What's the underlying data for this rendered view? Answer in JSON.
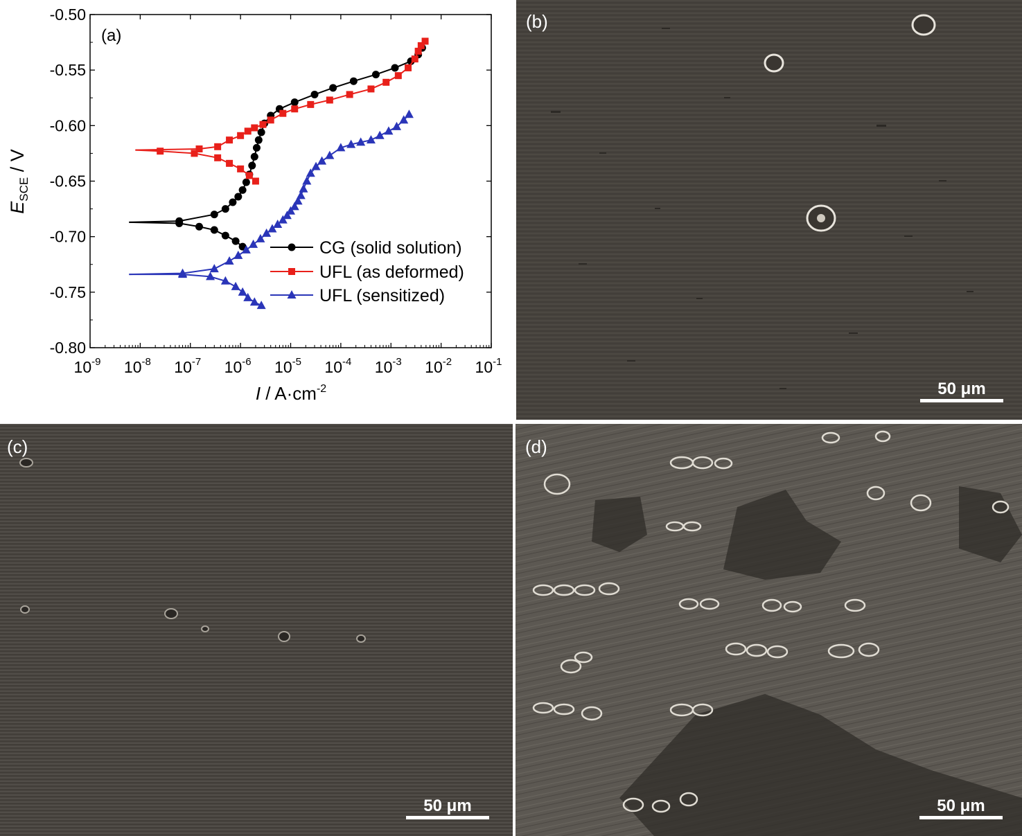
{
  "chart_data": {
    "type": "line",
    "panel_label": "(a)",
    "xlabel_var": "I",
    "xlabel_unit": " / A·cm",
    "xlabel_exp": "-2",
    "ylabel_var": "E",
    "ylabel_sub": "SCE",
    "ylabel_unit": " / V",
    "x_scale": "log",
    "xlim": [
      1e-09,
      0.1
    ],
    "ylim": [
      -0.8,
      -0.5
    ],
    "x_ticks": [
      {
        "base": "10",
        "exp": "-9"
      },
      {
        "base": "10",
        "exp": "-8"
      },
      {
        "base": "10",
        "exp": "-7"
      },
      {
        "base": "10",
        "exp": "-6"
      },
      {
        "base": "10",
        "exp": "-5"
      },
      {
        "base": "10",
        "exp": "-4"
      },
      {
        "base": "10",
        "exp": "-3"
      },
      {
        "base": "10",
        "exp": "-2"
      },
      {
        "base": "10",
        "exp": "-1"
      }
    ],
    "y_ticks": [
      "-0.50",
      "-0.55",
      "-0.60",
      "-0.65",
      "-0.70",
      "-0.75",
      "-0.80"
    ],
    "legend_position": "bottom-right",
    "series": [
      {
        "name": "CG (solid solution)",
        "color": "#000000",
        "marker": "circle",
        "cathodic": [
          [
            6e-09,
            -0.687
          ],
          [
            6e-08,
            -0.688
          ],
          [
            1.5e-07,
            -0.691
          ],
          [
            3e-07,
            -0.694
          ],
          [
            5e-07,
            -0.699
          ],
          [
            8e-07,
            -0.704
          ],
          [
            1.1e-06,
            -0.709
          ]
        ],
        "anodic": [
          [
            6e-09,
            -0.687
          ],
          [
            6e-08,
            -0.686
          ],
          [
            3e-07,
            -0.68
          ],
          [
            5e-07,
            -0.675
          ],
          [
            7e-07,
            -0.669
          ],
          [
            9e-07,
            -0.664
          ],
          [
            1.1e-06,
            -0.658
          ],
          [
            1.3e-06,
            -0.651
          ],
          [
            1.5e-06,
            -0.644
          ],
          [
            1.7e-06,
            -0.636
          ],
          [
            1.9e-06,
            -0.628
          ],
          [
            2.1e-06,
            -0.62
          ],
          [
            2.3e-06,
            -0.613
          ],
          [
            2.6e-06,
            -0.606
          ],
          [
            3e-06,
            -0.598
          ],
          [
            4e-06,
            -0.591
          ],
          [
            6e-06,
            -0.585
          ],
          [
            1.2e-05,
            -0.579
          ],
          [
            3e-05,
            -0.572
          ],
          [
            7e-05,
            -0.566
          ],
          [
            0.00018,
            -0.56
          ],
          [
            0.0005,
            -0.554
          ],
          [
            0.0012,
            -0.548
          ],
          [
            0.0025,
            -0.542
          ],
          [
            0.0035,
            -0.536
          ],
          [
            0.0042,
            -0.53
          ]
        ]
      },
      {
        "name": "UFL (as deformed)",
        "color": "#e8201a",
        "marker": "square",
        "cathodic": [
          [
            8e-09,
            -0.622
          ],
          [
            2.5e-08,
            -0.623
          ],
          [
            1.2e-07,
            -0.625
          ],
          [
            3.5e-07,
            -0.629
          ],
          [
            6e-07,
            -0.634
          ],
          [
            1e-06,
            -0.639
          ],
          [
            1.5e-06,
            -0.645
          ],
          [
            2e-06,
            -0.65
          ]
        ],
        "anodic": [
          [
            8e-09,
            -0.622
          ],
          [
            1.5e-07,
            -0.621
          ],
          [
            3.5e-07,
            -0.619
          ],
          [
            6e-07,
            -0.613
          ],
          [
            1e-06,
            -0.609
          ],
          [
            1.4e-06,
            -0.605
          ],
          [
            1.9e-06,
            -0.602
          ],
          [
            2.8e-06,
            -0.599
          ],
          [
            4e-06,
            -0.595
          ],
          [
            7e-06,
            -0.589
          ],
          [
            1.2e-05,
            -0.585
          ],
          [
            2.5e-05,
            -0.581
          ],
          [
            6e-05,
            -0.577
          ],
          [
            0.00015,
            -0.572
          ],
          [
            0.0004,
            -0.567
          ],
          [
            0.0008,
            -0.561
          ],
          [
            0.0014,
            -0.555
          ],
          [
            0.0022,
            -0.548
          ],
          [
            0.003,
            -0.54
          ],
          [
            0.0035,
            -0.533
          ],
          [
            0.004,
            -0.528
          ],
          [
            0.0048,
            -0.524
          ]
        ]
      },
      {
        "name": "UFL (sensitized)",
        "color": "#2a35b8",
        "marker": "triangle",
        "cathodic": [
          [
            6e-09,
            -0.734
          ],
          [
            7e-08,
            -0.734
          ],
          [
            2.5e-07,
            -0.736
          ],
          [
            5e-07,
            -0.74
          ],
          [
            8e-07,
            -0.745
          ],
          [
            1.1e-06,
            -0.75
          ],
          [
            1.4e-06,
            -0.755
          ],
          [
            1.9e-06,
            -0.759
          ],
          [
            2.6e-06,
            -0.762
          ]
        ],
        "anodic": [
          [
            6e-09,
            -0.734
          ],
          [
            7e-08,
            -0.733
          ],
          [
            3e-07,
            -0.729
          ],
          [
            6e-07,
            -0.722
          ],
          [
            9e-07,
            -0.717
          ],
          [
            1.3e-06,
            -0.712
          ],
          [
            1.8e-06,
            -0.707
          ],
          [
            2.5e-06,
            -0.702
          ],
          [
            3.3e-06,
            -0.697
          ],
          [
            4.3e-06,
            -0.693
          ],
          [
            5.5e-06,
            -0.689
          ],
          [
            7e-06,
            -0.685
          ],
          [
            8.5e-06,
            -0.681
          ],
          [
            1e-05,
            -0.677
          ],
          [
            1.2e-05,
            -0.673
          ],
          [
            1.4e-05,
            -0.668
          ],
          [
            1.6e-05,
            -0.663
          ],
          [
            1.8e-05,
            -0.657
          ],
          [
            2.1e-05,
            -0.65
          ],
          [
            2.5e-05,
            -0.643
          ],
          [
            3.2e-05,
            -0.637
          ],
          [
            4.2e-05,
            -0.632
          ],
          [
            6e-05,
            -0.627
          ],
          [
            0.0001,
            -0.62
          ],
          [
            0.00016,
            -0.617
          ],
          [
            0.00025,
            -0.615
          ],
          [
            0.0004,
            -0.613
          ],
          [
            0.0006,
            -0.609
          ],
          [
            0.0009,
            -0.605
          ],
          [
            0.0013,
            -0.601
          ],
          [
            0.0018,
            -0.595
          ],
          [
            0.0023,
            -0.59
          ]
        ]
      }
    ]
  },
  "sem_panels": {
    "b": {
      "label": "(b)",
      "scale_text": "50 μm"
    },
    "c": {
      "label": "(c)",
      "scale_text": "50 μm"
    },
    "d": {
      "label": "(d)",
      "scale_text": "50 μm"
    }
  }
}
